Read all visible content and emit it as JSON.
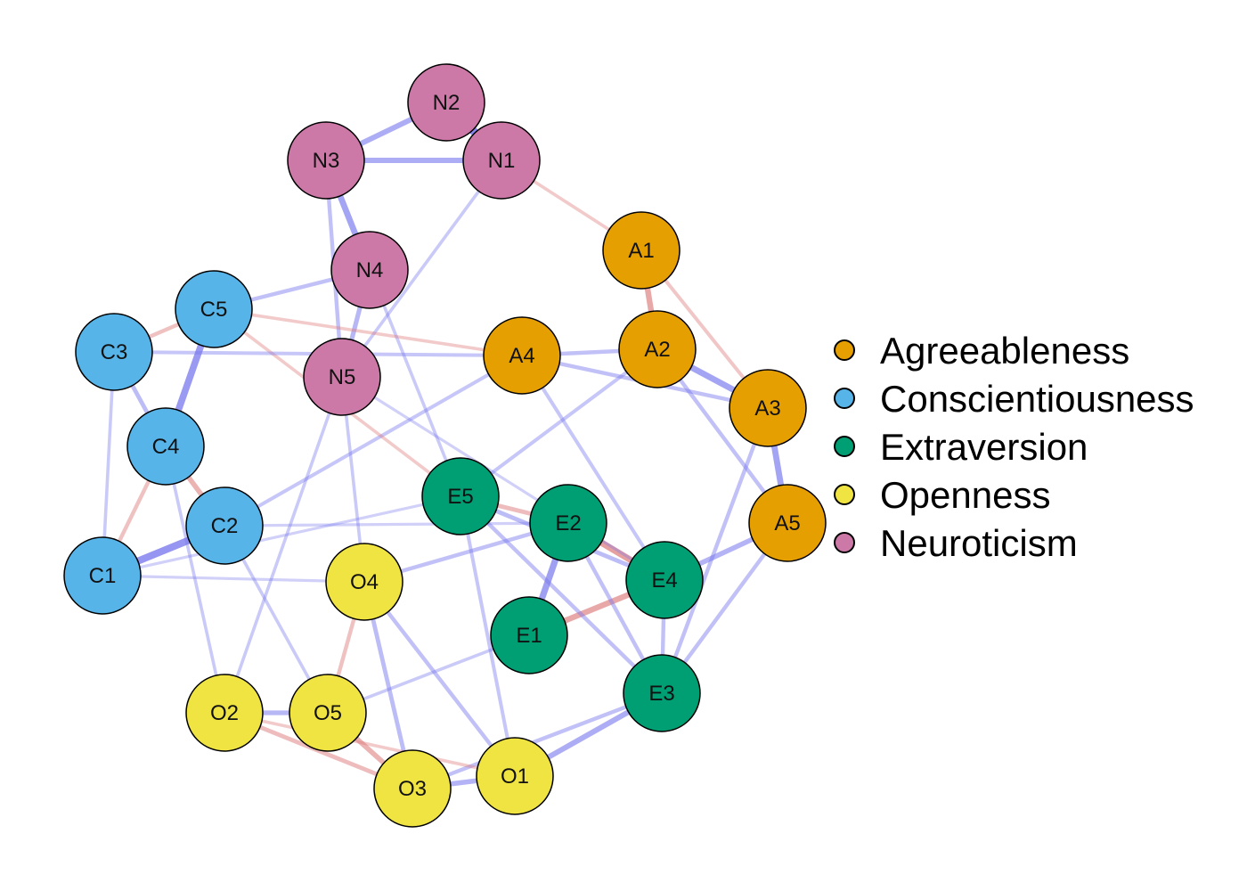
{
  "groups": [
    {
      "name": "Agreeableness",
      "color": "#E69F00"
    },
    {
      "name": "Conscientiousness",
      "color": "#56B4E9"
    },
    {
      "name": "Extraversion",
      "color": "#009E73"
    },
    {
      "name": "Openness",
      "color": "#F0E442"
    },
    {
      "name": "Neuroticism",
      "color": "#CC79A7"
    }
  ],
  "edge_colors": {
    "positive": "#7777EE",
    "negative": "#DD7777"
  },
  "nodes": [
    {
      "id": "N2",
      "label": "N2",
      "group": "Neuroticism"
    },
    {
      "id": "N1",
      "label": "N1",
      "group": "Neuroticism"
    },
    {
      "id": "N3",
      "label": "N3",
      "group": "Neuroticism"
    },
    {
      "id": "N4",
      "label": "N4",
      "group": "Neuroticism"
    },
    {
      "id": "N5",
      "label": "N5",
      "group": "Neuroticism"
    },
    {
      "id": "A1",
      "label": "A1",
      "group": "Agreeableness"
    },
    {
      "id": "A2",
      "label": "A2",
      "group": "Agreeableness"
    },
    {
      "id": "A3",
      "label": "A3",
      "group": "Agreeableness"
    },
    {
      "id": "A4",
      "label": "A4",
      "group": "Agreeableness"
    },
    {
      "id": "A5",
      "label": "A5",
      "group": "Agreeableness"
    },
    {
      "id": "C1",
      "label": "C1",
      "group": "Conscientiousness"
    },
    {
      "id": "C2",
      "label": "C2",
      "group": "Conscientiousness"
    },
    {
      "id": "C3",
      "label": "C3",
      "group": "Conscientiousness"
    },
    {
      "id": "C4",
      "label": "C4",
      "group": "Conscientiousness"
    },
    {
      "id": "C5",
      "label": "C5",
      "group": "Conscientiousness"
    },
    {
      "id": "E1",
      "label": "E1",
      "group": "Extraversion"
    },
    {
      "id": "E2",
      "label": "E2",
      "group": "Extraversion"
    },
    {
      "id": "E3",
      "label": "E3",
      "group": "Extraversion"
    },
    {
      "id": "E4",
      "label": "E4",
      "group": "Extraversion"
    },
    {
      "id": "E5",
      "label": "E5",
      "group": "Extraversion"
    },
    {
      "id": "O1",
      "label": "O1",
      "group": "Openness"
    },
    {
      "id": "O2",
      "label": "O2",
      "group": "Openness"
    },
    {
      "id": "O3",
      "label": "O3",
      "group": "Openness"
    },
    {
      "id": "O4",
      "label": "O4",
      "group": "Openness"
    },
    {
      "id": "O5",
      "label": "O5",
      "group": "Openness"
    }
  ],
  "edges": [
    {
      "from": "N1",
      "to": "N2",
      "weight": 0.9,
      "sign": "positive"
    },
    {
      "from": "N2",
      "to": "N3",
      "weight": 0.5,
      "sign": "positive"
    },
    {
      "from": "N1",
      "to": "N3",
      "weight": 0.5,
      "sign": "positive"
    },
    {
      "from": "N3",
      "to": "N4",
      "weight": 0.6,
      "sign": "positive"
    },
    {
      "from": "N4",
      "to": "N5",
      "weight": 0.4,
      "sign": "positive"
    },
    {
      "from": "N3",
      "to": "N5",
      "weight": 0.3,
      "sign": "positive"
    },
    {
      "from": "N1",
      "to": "N5",
      "weight": 0.2,
      "sign": "positive"
    },
    {
      "from": "N4",
      "to": "C5",
      "weight": 0.3,
      "sign": "positive"
    },
    {
      "from": "N4",
      "to": "E5",
      "weight": 0.2,
      "sign": "positive"
    },
    {
      "from": "A1",
      "to": "A2",
      "weight": 0.55,
      "sign": "negative"
    },
    {
      "from": "A1",
      "to": "A3",
      "weight": 0.25,
      "sign": "negative"
    },
    {
      "from": "A2",
      "to": "A3",
      "weight": 0.6,
      "sign": "positive"
    },
    {
      "from": "A2",
      "to": "A4",
      "weight": 0.3,
      "sign": "positive"
    },
    {
      "from": "A2",
      "to": "A5",
      "weight": 0.3,
      "sign": "positive"
    },
    {
      "from": "A3",
      "to": "A5",
      "weight": 0.6,
      "sign": "positive"
    },
    {
      "from": "A4",
      "to": "A3",
      "weight": 0.3,
      "sign": "positive"
    },
    {
      "from": "A5",
      "to": "E4",
      "weight": 0.45,
      "sign": "positive"
    },
    {
      "from": "A5",
      "to": "E3",
      "weight": 0.3,
      "sign": "positive"
    },
    {
      "from": "A3",
      "to": "E3",
      "weight": 0.3,
      "sign": "positive"
    },
    {
      "from": "A4",
      "to": "C2",
      "weight": 0.25,
      "sign": "positive"
    },
    {
      "from": "A4",
      "to": "E4",
      "weight": 0.25,
      "sign": "positive"
    },
    {
      "from": "A4",
      "to": "C5",
      "weight": 0.2,
      "sign": "negative"
    },
    {
      "from": "A2",
      "to": "E5",
      "weight": 0.25,
      "sign": "positive"
    },
    {
      "from": "A1",
      "to": "N1",
      "weight": 0.2,
      "sign": "negative"
    },
    {
      "from": "C5",
      "to": "C4",
      "weight": 0.7,
      "sign": "positive"
    },
    {
      "from": "C3",
      "to": "C5",
      "weight": 0.3,
      "sign": "negative"
    },
    {
      "from": "C3",
      "to": "C4",
      "weight": 0.35,
      "sign": "positive"
    },
    {
      "from": "C4",
      "to": "C2",
      "weight": 0.45,
      "sign": "negative"
    },
    {
      "from": "C2",
      "to": "C1",
      "weight": 0.75,
      "sign": "positive"
    },
    {
      "from": "C4",
      "to": "C1",
      "weight": 0.3,
      "sign": "negative"
    },
    {
      "from": "C3",
      "to": "C1",
      "weight": 0.2,
      "sign": "positive"
    },
    {
      "from": "C1",
      "to": "E5",
      "weight": 0.15,
      "sign": "positive"
    },
    {
      "from": "C2",
      "to": "O5",
      "weight": 0.2,
      "sign": "positive"
    },
    {
      "from": "C5",
      "to": "E5",
      "weight": 0.2,
      "sign": "negative"
    },
    {
      "from": "C3",
      "to": "A4",
      "weight": 0.25,
      "sign": "positive"
    },
    {
      "from": "E5",
      "to": "E2",
      "weight": 0.35,
      "sign": "negative"
    },
    {
      "from": "E5",
      "to": "E4",
      "weight": 0.35,
      "sign": "positive"
    },
    {
      "from": "E2",
      "to": "E4",
      "weight": 0.65,
      "sign": "negative"
    },
    {
      "from": "E2",
      "to": "E1",
      "weight": 0.65,
      "sign": "positive"
    },
    {
      "from": "E1",
      "to": "E4",
      "weight": 0.55,
      "sign": "negative"
    },
    {
      "from": "E4",
      "to": "E3",
      "weight": 0.3,
      "sign": "positive"
    },
    {
      "from": "E2",
      "to": "E3",
      "weight": 0.3,
      "sign": "positive"
    },
    {
      "from": "E5",
      "to": "E3",
      "weight": 0.3,
      "sign": "positive"
    },
    {
      "from": "E5",
      "to": "O1",
      "weight": 0.25,
      "sign": "positive"
    },
    {
      "from": "E3",
      "to": "O1",
      "weight": 0.5,
      "sign": "positive"
    },
    {
      "from": "E3",
      "to": "O3",
      "weight": 0.3,
      "sign": "positive"
    },
    {
      "from": "E2",
      "to": "O4",
      "weight": 0.3,
      "sign": "positive"
    },
    {
      "from": "E1",
      "to": "O5",
      "weight": 0.2,
      "sign": "positive"
    },
    {
      "from": "O2",
      "to": "O5",
      "weight": 0.4,
      "sign": "positive"
    },
    {
      "from": "O2",
      "to": "O3",
      "weight": 0.35,
      "sign": "negative"
    },
    {
      "from": "O5",
      "to": "O3",
      "weight": 0.45,
      "sign": "negative"
    },
    {
      "from": "O3",
      "to": "O1",
      "weight": 0.45,
      "sign": "positive"
    },
    {
      "from": "O4",
      "to": "O3",
      "weight": 0.35,
      "sign": "positive"
    },
    {
      "from": "O4",
      "to": "O1",
      "weight": 0.3,
      "sign": "positive"
    },
    {
      "from": "O4",
      "to": "O5",
      "weight": 0.3,
      "sign": "negative"
    },
    {
      "from": "O2",
      "to": "O1",
      "weight": 0.2,
      "sign": "negative"
    },
    {
      "from": "O4",
      "to": "N5",
      "weight": 0.2,
      "sign": "positive"
    },
    {
      "from": "O2",
      "to": "N5",
      "weight": 0.2,
      "sign": "positive"
    },
    {
      "from": "O2",
      "to": "C4",
      "weight": 0.2,
      "sign": "positive"
    },
    {
      "from": "N5",
      "to": "E4",
      "weight": 0.15,
      "sign": "positive"
    },
    {
      "from": "C1",
      "to": "O4",
      "weight": 0.15,
      "sign": "positive"
    },
    {
      "from": "C2",
      "to": "E2",
      "weight": 0.15,
      "sign": "positive"
    }
  ]
}
